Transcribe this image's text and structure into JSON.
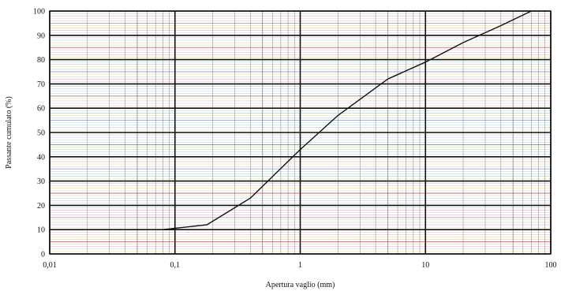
{
  "chart_data": {
    "type": "line",
    "xscale": "log",
    "xlim": [
      0.01,
      100
    ],
    "ylim": [
      0,
      100
    ],
    "xlabel": "Apertura vaglio (mm)",
    "ylabel": "Passante cumulato (%)",
    "x_tick_labels": [
      "0,01",
      "0,1",
      "1",
      "10",
      "100"
    ],
    "y_tick_labels": [
      "0",
      "10",
      "20",
      "30",
      "40",
      "50",
      "60",
      "70",
      "80",
      "90",
      "100"
    ],
    "grid": true,
    "series": [
      {
        "x": [
          0.08,
          0.18,
          0.4,
          1,
          2,
          5,
          10,
          20,
          40,
          70
        ],
        "values": [
          10,
          12,
          23,
          43,
          57,
          72,
          79,
          87,
          94,
          100
        ]
      }
    ],
    "colors": {
      "line": "#111111",
      "major_grid": "#111111",
      "minor_grid_colors": [
        "#e8a020",
        "#7aa0d8",
        "#c86aa0",
        "#a8c060",
        "#d05050",
        "#60b0b0"
      ]
    }
  }
}
